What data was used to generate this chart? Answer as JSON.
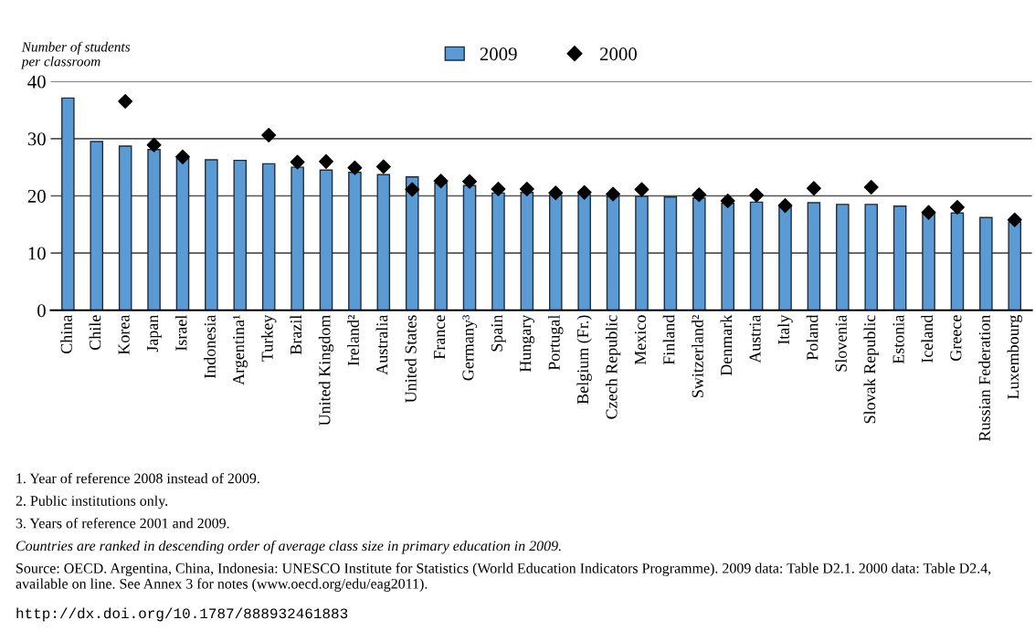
{
  "chart_data": {
    "type": "bar",
    "ylabel": "Number of students\nper classroom",
    "categories": [
      "China",
      "Chile",
      "Korea",
      "Japan",
      "Israel",
      "Indonesia",
      "Argentina¹",
      "Turkey",
      "Brazil",
      "United Kingdom",
      "Ireland²",
      "Australia",
      "United States",
      "France",
      "Germany³",
      "Spain",
      "Hungary",
      "Portugal",
      "Belgium (Fr.)",
      "Czech Republic",
      "Mexico",
      "Finland",
      "Switzerland²",
      "Denmark",
      "Austria",
      "Italy",
      "Poland",
      "Slovenia",
      "Slovak Republic",
      "Estonia",
      "Iceland",
      "Greece",
      "Russian Federation",
      "Luxembourg"
    ],
    "series": [
      {
        "name": "2009",
        "color": "#5b9bd5",
        "values": [
          37.1,
          29.5,
          28.7,
          28.1,
          26.5,
          26.3,
          26.2,
          25.6,
          25.0,
          24.5,
          24.1,
          23.7,
          23.3,
          22.2,
          21.8,
          20.5,
          20.6,
          20.1,
          20.2,
          19.9,
          19.9,
          19.8,
          19.6,
          18.7,
          18.9,
          18.2,
          18.8,
          18.5,
          18.5,
          18.2,
          17.0,
          17.0,
          16.2,
          15.4
        ]
      },
      {
        "name": "2000",
        "type": "scatter",
        "color": "#000000",
        "marker": "diamond",
        "values": [
          null,
          null,
          36.5,
          28.9,
          26.8,
          null,
          null,
          30.6,
          25.9,
          26.0,
          24.9,
          25.1,
          21.1,
          22.6,
          22.5,
          21.2,
          21.2,
          20.5,
          20.6,
          20.3,
          21.1,
          null,
          20.2,
          19.1,
          20.1,
          18.3,
          21.3,
          null,
          21.5,
          null,
          17.1,
          18.0,
          null,
          15.8
        ]
      }
    ],
    "ylim": [
      0,
      40
    ],
    "yticks": [
      0,
      10,
      20,
      30,
      40
    ],
    "grid": "y",
    "legend": "top",
    "annotations": [
      "1. Year of reference 2008 instead of 2009.",
      "2. Public institutions only.",
      "3. Years of reference 2001 and 2009.",
      "Countries are ranked in descending order of average class size in primary education in 2009.",
      "Source: OECD. Argentina, China, Indonesia: UNESCO Institute for Statistics (World Education Indicators Programme). 2009 data: Table D2.1. 2000 data: Table D2.4, available on line. See Annex 3 for notes (www.oecd.org/edu/eag2011).",
      "http://dx.doi.org/10.1787/888932461883"
    ]
  }
}
